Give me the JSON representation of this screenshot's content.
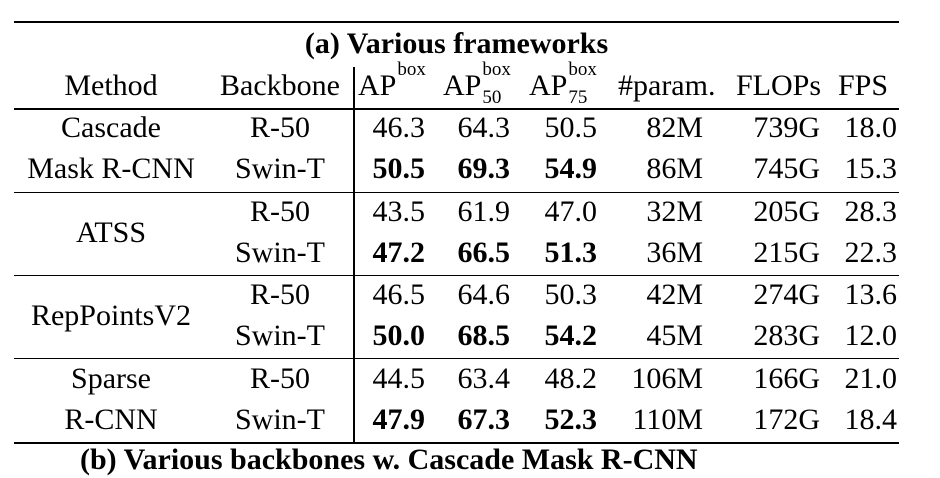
{
  "title": "(a) Various frameworks",
  "headers": {
    "method": "Method",
    "backbone": "Backbone",
    "ap_base": "AP",
    "ap_sup": "box",
    "ap50_sub": "50",
    "ap75_sub": "75",
    "params": "#param.",
    "flops": "FLOPs",
    "fps": "FPS"
  },
  "groups": [
    {
      "method_lines": [
        "Cascade",
        "Mask R-CNN"
      ],
      "rows": [
        {
          "backbone": "R-50",
          "ap": "46.3",
          "ap50": "64.3",
          "ap75": "50.5",
          "params": "82M",
          "flops": "739G",
          "fps": "18.0",
          "bold": false
        },
        {
          "backbone": "Swin-T",
          "ap": "50.5",
          "ap50": "69.3",
          "ap75": "54.9",
          "params": "86M",
          "flops": "745G",
          "fps": "15.3",
          "bold": true
        }
      ]
    },
    {
      "method_lines": [
        "ATSS"
      ],
      "rows": [
        {
          "backbone": "R-50",
          "ap": "43.5",
          "ap50": "61.9",
          "ap75": "47.0",
          "params": "32M",
          "flops": "205G",
          "fps": "28.3",
          "bold": false
        },
        {
          "backbone": "Swin-T",
          "ap": "47.2",
          "ap50": "66.5",
          "ap75": "51.3",
          "params": "36M",
          "flops": "215G",
          "fps": "22.3",
          "bold": true
        }
      ]
    },
    {
      "method_lines": [
        "RepPointsV2"
      ],
      "rows": [
        {
          "backbone": "R-50",
          "ap": "46.5",
          "ap50": "64.6",
          "ap75": "50.3",
          "params": "42M",
          "flops": "274G",
          "fps": "13.6",
          "bold": false
        },
        {
          "backbone": "Swin-T",
          "ap": "50.0",
          "ap50": "68.5",
          "ap75": "54.2",
          "params": "45M",
          "flops": "283G",
          "fps": "12.0",
          "bold": true
        }
      ]
    },
    {
      "method_lines": [
        "Sparse",
        "R-CNN"
      ],
      "rows": [
        {
          "backbone": "R-50",
          "ap": "44.5",
          "ap50": "63.4",
          "ap75": "48.2",
          "params": "106M",
          "flops": "166G",
          "fps": "21.0",
          "bold": false
        },
        {
          "backbone": "Swin-T",
          "ap": "47.9",
          "ap50": "67.3",
          "ap75": "52.3",
          "params": "110M",
          "flops": "172G",
          "fps": "18.4",
          "bold": true
        }
      ]
    }
  ],
  "next_caption": "(b) Various backbones w. Cascade Mask R-CNN"
}
